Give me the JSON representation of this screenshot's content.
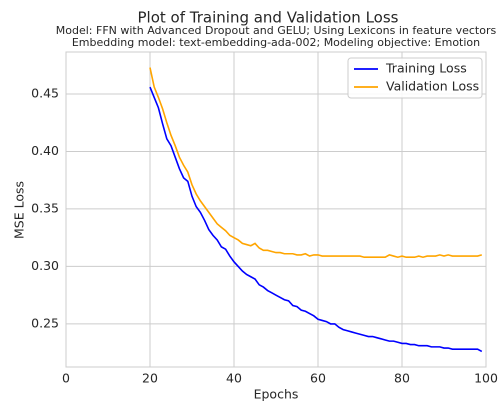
{
  "chart_data": {
    "type": "line",
    "title": "Plot of Training and Validation Loss",
    "subtitle": [
      "Model: FFN with Advanced Dropout and GELU; Using Lexicons in feature vectors",
      "Embedding model: text-embedding-ada-002; Modeling objective: Emotion"
    ],
    "xlabel": "Epochs",
    "ylabel": "MSE Loss",
    "x": [
      20,
      21,
      22,
      23,
      24,
      25,
      26,
      27,
      28,
      29,
      30,
      31,
      32,
      33,
      34,
      35,
      36,
      37,
      38,
      39,
      40,
      41,
      42,
      43,
      44,
      45,
      46,
      47,
      48,
      49,
      50,
      51,
      52,
      53,
      54,
      55,
      56,
      57,
      58,
      59,
      60,
      61,
      62,
      63,
      64,
      65,
      66,
      67,
      68,
      69,
      70,
      71,
      72,
      73,
      74,
      75,
      76,
      77,
      78,
      79,
      80,
      81,
      82,
      83,
      84,
      85,
      86,
      87,
      88,
      89,
      90,
      91,
      92,
      93,
      94,
      95,
      96,
      97,
      98,
      99
    ],
    "series": [
      {
        "name": "Training Loss",
        "color": "#0000ff",
        "values": [
          0.456,
          0.447,
          0.438,
          0.424,
          0.411,
          0.405,
          0.395,
          0.385,
          0.377,
          0.374,
          0.361,
          0.352,
          0.347,
          0.34,
          0.332,
          0.327,
          0.323,
          0.317,
          0.315,
          0.309,
          0.304,
          0.3,
          0.296,
          0.293,
          0.291,
          0.289,
          0.284,
          0.282,
          0.279,
          0.277,
          0.275,
          0.273,
          0.271,
          0.27,
          0.266,
          0.265,
          0.262,
          0.261,
          0.259,
          0.257,
          0.254,
          0.253,
          0.252,
          0.25,
          0.25,
          0.247,
          0.245,
          0.244,
          0.243,
          0.242,
          0.241,
          0.24,
          0.239,
          0.239,
          0.238,
          0.237,
          0.236,
          0.235,
          0.235,
          0.234,
          0.233,
          0.233,
          0.232,
          0.232,
          0.231,
          0.231,
          0.231,
          0.23,
          0.23,
          0.23,
          0.229,
          0.229,
          0.228,
          0.228,
          0.228,
          0.228,
          0.228,
          0.228,
          0.228,
          0.226
        ]
      },
      {
        "name": "Validation Loss",
        "color": "#ffa500",
        "values": [
          0.473,
          0.456,
          0.447,
          0.437,
          0.425,
          0.414,
          0.405,
          0.395,
          0.388,
          0.382,
          0.371,
          0.363,
          0.357,
          0.352,
          0.347,
          0.342,
          0.337,
          0.334,
          0.331,
          0.327,
          0.325,
          0.323,
          0.32,
          0.319,
          0.318,
          0.32,
          0.316,
          0.314,
          0.314,
          0.313,
          0.312,
          0.312,
          0.311,
          0.311,
          0.311,
          0.31,
          0.31,
          0.311,
          0.309,
          0.31,
          0.31,
          0.309,
          0.309,
          0.309,
          0.309,
          0.309,
          0.309,
          0.309,
          0.309,
          0.309,
          0.309,
          0.308,
          0.308,
          0.308,
          0.308,
          0.308,
          0.308,
          0.31,
          0.309,
          0.308,
          0.309,
          0.308,
          0.308,
          0.308,
          0.309,
          0.308,
          0.309,
          0.309,
          0.309,
          0.31,
          0.309,
          0.31,
          0.309,
          0.309,
          0.309,
          0.309,
          0.309,
          0.309,
          0.309,
          0.31
        ]
      }
    ],
    "xlim": [
      0,
      100
    ],
    "xticks": [
      0,
      20,
      40,
      60,
      80,
      100
    ],
    "ylim": [
      0.2125,
      0.4865
    ],
    "yticks": [
      0.25,
      {
        "value": 0.3,
        "label": "0.30"
      },
      0.35,
      {
        "value": 0.4,
        "label": "0.40"
      },
      0.45
    ],
    "grid": true,
    "legend": "upper right"
  }
}
